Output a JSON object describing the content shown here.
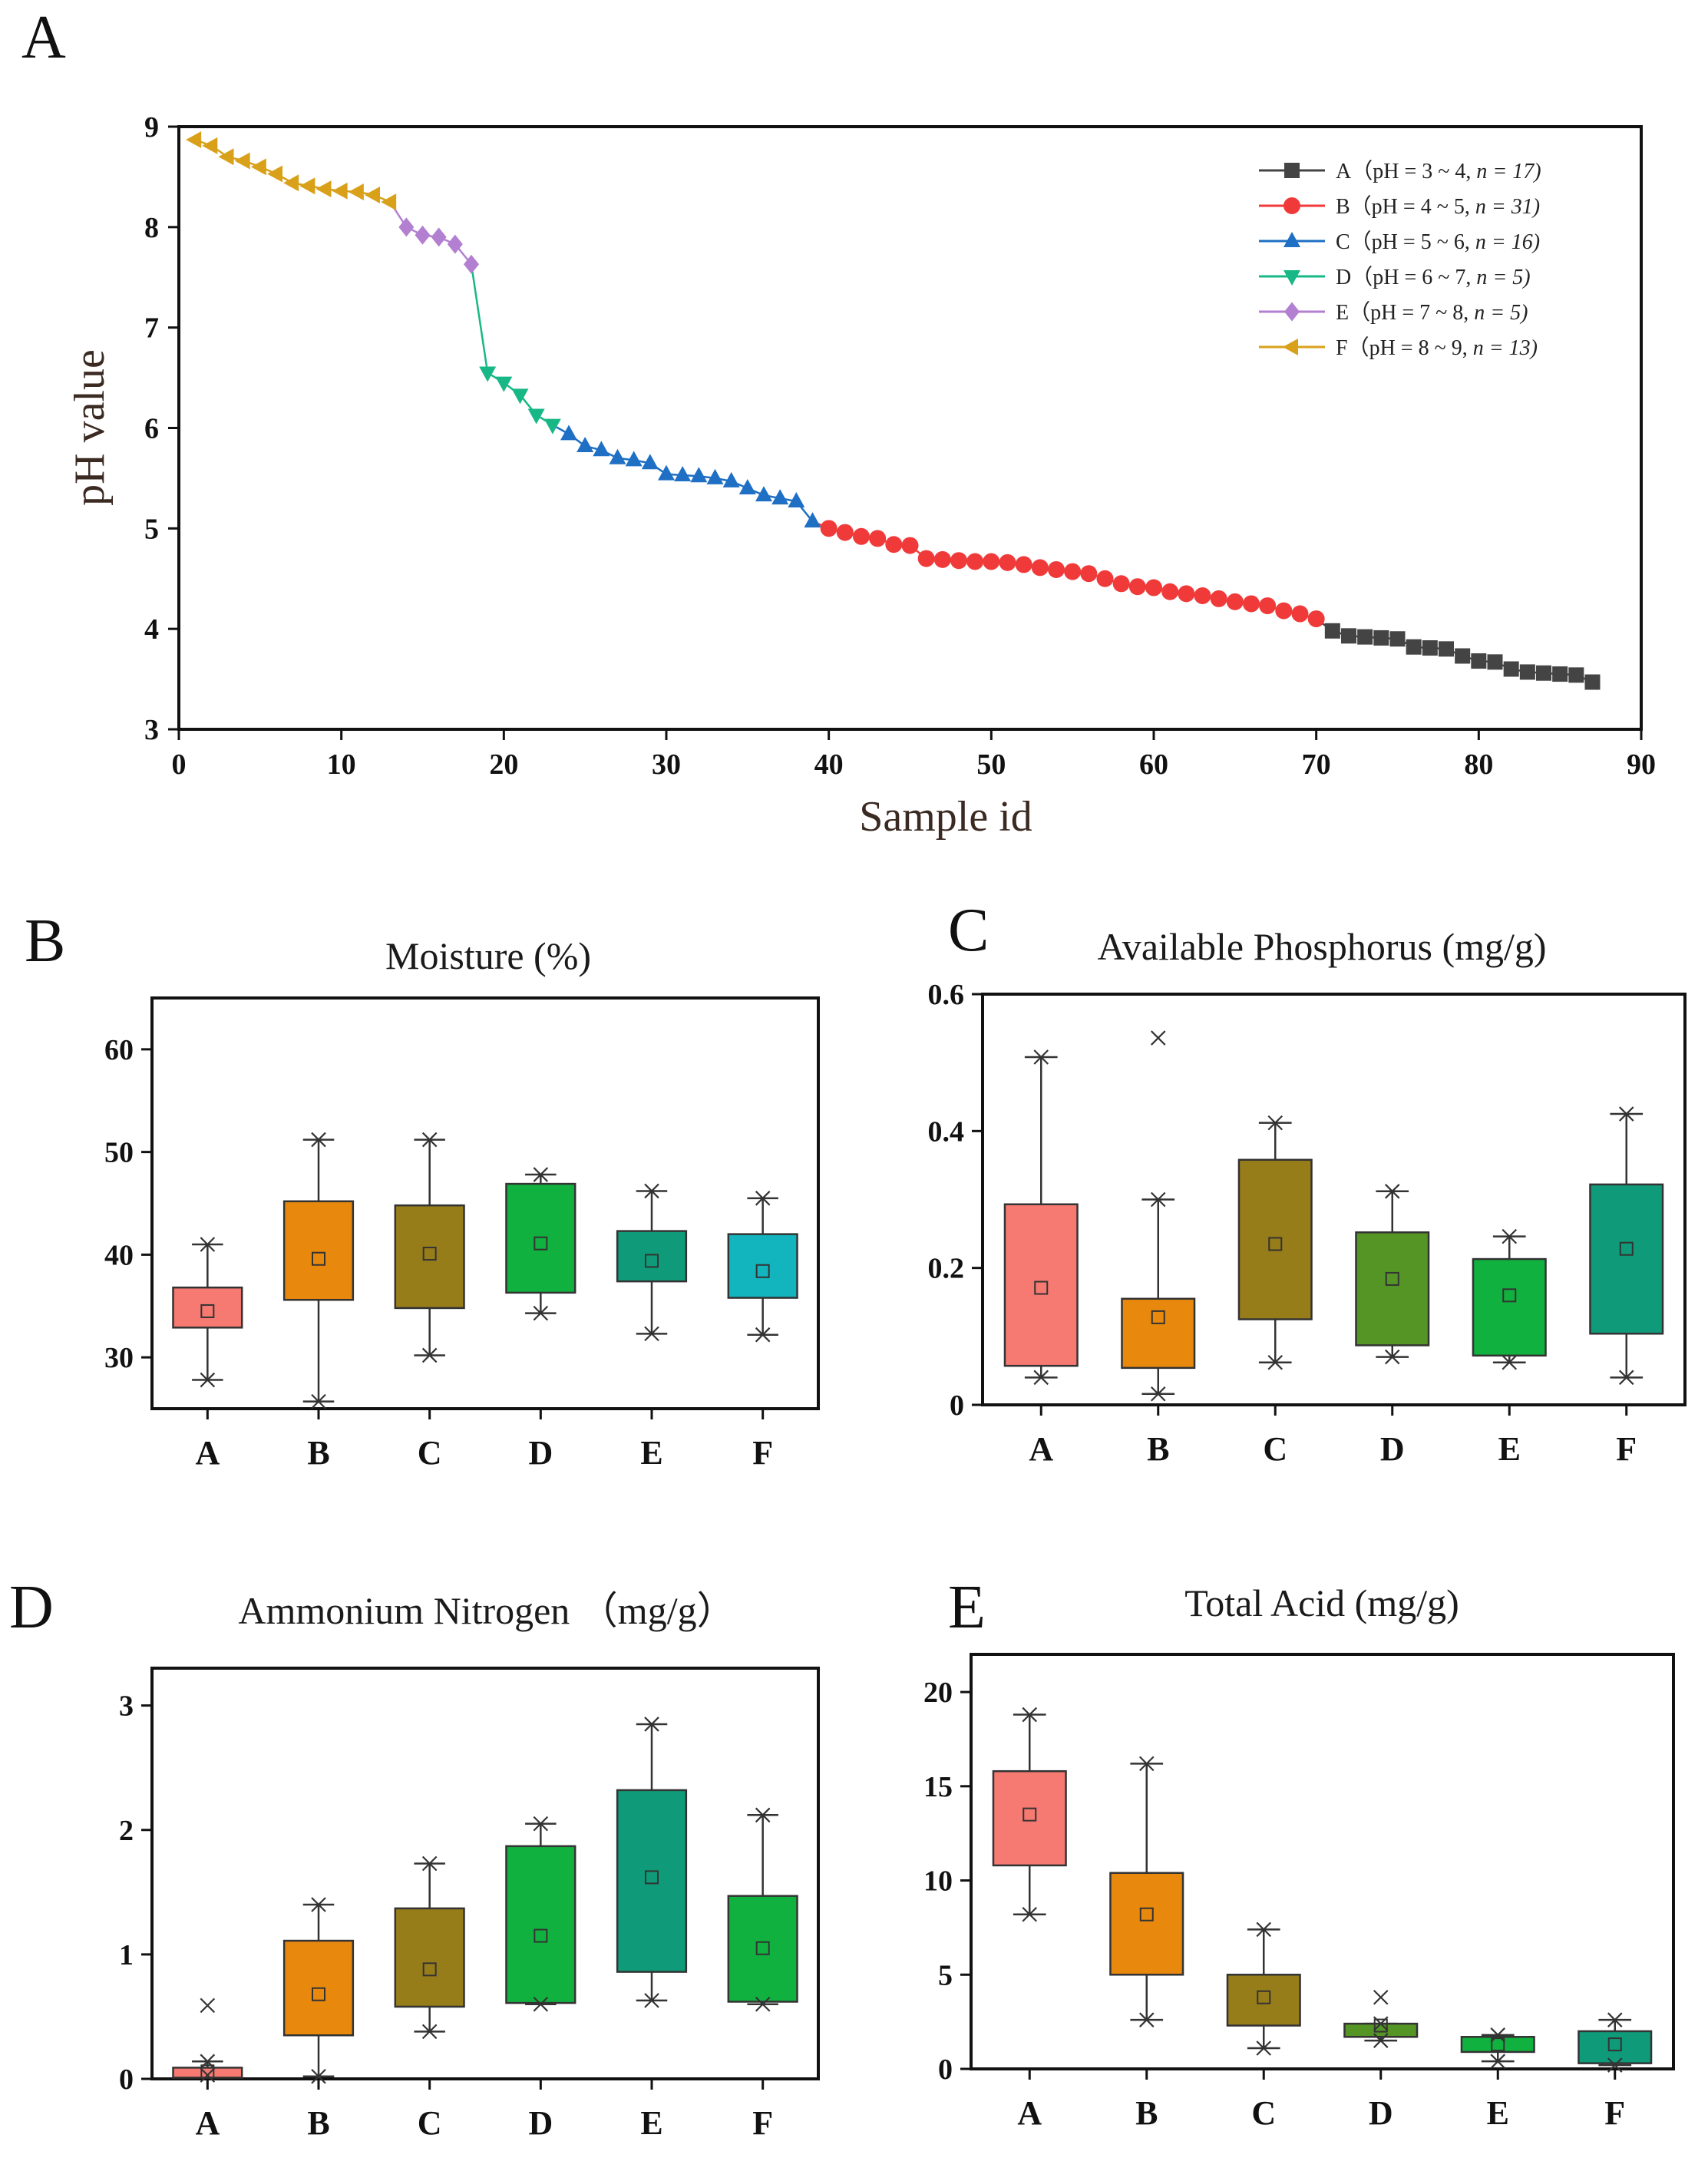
{
  "figure": {
    "panels": [
      "A",
      "B",
      "C",
      "D",
      "E"
    ]
  },
  "chart_data": [
    {
      "panel": "A",
      "type": "line",
      "xlabel": "Sample id",
      "ylabel": "pH value",
      "xlim": [
        0,
        90
      ],
      "ylim": [
        3,
        9
      ],
      "xticks": [
        0,
        10,
        20,
        30,
        40,
        50,
        60,
        70,
        80,
        90
      ],
      "yticks": [
        3,
        4,
        5,
        6,
        7,
        8,
        9
      ],
      "legend": {
        "placement": "top-right"
      },
      "series": [
        {
          "name": "A",
          "legend_label": "A（pH = 3 ~ 4, ",
          "legend_n": "n = 17)",
          "color": "#444444",
          "marker": "square",
          "x": [
            71,
            72,
            73,
            74,
            75,
            76,
            77,
            78,
            79,
            80,
            81,
            82,
            83,
            84,
            85,
            86,
            87
          ],
          "values": [
            3.98,
            3.93,
            3.92,
            3.91,
            3.9,
            3.82,
            3.81,
            3.8,
            3.73,
            3.68,
            3.67,
            3.6,
            3.57,
            3.56,
            3.55,
            3.54,
            3.47
          ]
        },
        {
          "name": "B",
          "legend_label": "B（pH = 4 ~ 5, ",
          "legend_n": "n = 31)",
          "color": "#f03a3a",
          "marker": "circle",
          "x": [
            40,
            41,
            42,
            43,
            44,
            45,
            46,
            47,
            48,
            49,
            50,
            51,
            52,
            53,
            54,
            55,
            56,
            57,
            58,
            59,
            60,
            61,
            62,
            63,
            64,
            65,
            66,
            67,
            68,
            69,
            70
          ],
          "values": [
            5.0,
            4.96,
            4.92,
            4.9,
            4.84,
            4.83,
            4.7,
            4.69,
            4.68,
            4.67,
            4.67,
            4.66,
            4.64,
            4.61,
            4.59,
            4.57,
            4.55,
            4.5,
            4.45,
            4.42,
            4.41,
            4.37,
            4.35,
            4.33,
            4.3,
            4.27,
            4.25,
            4.23,
            4.18,
            4.15,
            4.1
          ]
        },
        {
          "name": "C",
          "legend_label": "C（pH = 5 ~ 6, ",
          "legend_n": "n = 16)",
          "color": "#1f6fc4",
          "marker": "triangle-up",
          "x": [
            24,
            25,
            26,
            27,
            28,
            29,
            30,
            31,
            32,
            33,
            34,
            35,
            36,
            37,
            38,
            39
          ],
          "values": [
            5.94,
            5.82,
            5.78,
            5.7,
            5.68,
            5.65,
            5.54,
            5.53,
            5.52,
            5.5,
            5.47,
            5.4,
            5.33,
            5.3,
            5.27,
            5.07
          ]
        },
        {
          "name": "D",
          "legend_label": "D（pH = 6 ~ 7, ",
          "legend_n": "n = 5)",
          "color": "#17b885",
          "marker": "triangle-down",
          "x": [
            19,
            20,
            21,
            22,
            23
          ],
          "values": [
            6.55,
            6.45,
            6.33,
            6.13,
            6.03
          ]
        },
        {
          "name": "E",
          "legend_label": "E（pH = 7 ~ 8, ",
          "legend_n": "n = 5)",
          "color": "#b37fd1",
          "marker": "diamond",
          "x": [
            14,
            15,
            16,
            17,
            18
          ],
          "values": [
            8.0,
            7.92,
            7.9,
            7.83,
            7.63
          ]
        },
        {
          "name": "F",
          "legend_label": "F（pH = 8 ~ 9, ",
          "legend_n": "n = 13)",
          "color": "#d9a11a",
          "marker": "triangle-left",
          "x": [
            1,
            2,
            3,
            4,
            5,
            6,
            7,
            8,
            9,
            10,
            11,
            12,
            13
          ],
          "values": [
            8.87,
            8.81,
            8.7,
            8.66,
            8.6,
            8.53,
            8.44,
            8.41,
            8.38,
            8.36,
            8.35,
            8.32,
            8.25
          ]
        }
      ]
    },
    {
      "panel": "B",
      "type": "box",
      "title": "Moisture (%)",
      "ylim": [
        25,
        65
      ],
      "yticks": [
        30,
        40,
        50,
        60
      ],
      "categories": [
        "A",
        "B",
        "C",
        "D",
        "E",
        "F"
      ],
      "colors": [
        "#f77a72",
        "#e8890d",
        "#977c1a",
        "#11b13f",
        "#0f9b79",
        "#12b4be"
      ],
      "whisker_low": [
        27.8,
        25.7,
        30.2,
        34.3,
        32.3,
        32.2
      ],
      "q1": [
        32.9,
        35.6,
        34.8,
        36.3,
        37.4,
        35.8
      ],
      "q3": [
        36.8,
        45.2,
        44.8,
        46.9,
        42.3,
        42.0
      ],
      "whisker_high": [
        41.0,
        51.2,
        51.2,
        47.8,
        46.2,
        45.5
      ],
      "mean": [
        34.5,
        39.6,
        40.1,
        41.1,
        39.4,
        38.4
      ],
      "outliers": [
        [],
        [],
        [],
        [],
        [],
        []
      ]
    },
    {
      "panel": "C",
      "type": "box",
      "title": "Available Phosphorus (mg/g)",
      "ylim": [
        0.0,
        0.6
      ],
      "yticks": [
        0.0,
        0.2,
        0.4,
        0.6
      ],
      "categories": [
        "A",
        "B",
        "C",
        "D",
        "E",
        "F"
      ],
      "colors": [
        "#f77a72",
        "#e8890d",
        "#977c1a",
        "#559526",
        "#11b13f",
        "#0f9b79"
      ],
      "whisker_low": [
        0.04,
        0.016,
        0.062,
        0.07,
        0.062,
        0.04
      ],
      "q1": [
        0.057,
        0.054,
        0.125,
        0.087,
        0.072,
        0.104
      ],
      "q3": [
        0.293,
        0.155,
        0.358,
        0.252,
        0.213,
        0.322
      ],
      "whisker_high": [
        0.508,
        0.3,
        0.412,
        0.312,
        0.246,
        0.425
      ],
      "mean": [
        0.171,
        0.128,
        0.235,
        0.184,
        0.16,
        0.228
      ],
      "outliers": [
        [],
        [
          0.536
        ],
        [],
        [],
        [],
        []
      ]
    },
    {
      "panel": "D",
      "type": "box",
      "title": "Ammonium Nitrogen （mg/g）",
      "ylim": [
        0,
        3.3
      ],
      "yticks": [
        0,
        1,
        2,
        3
      ],
      "categories": [
        "A",
        "B",
        "C",
        "D",
        "E",
        "F"
      ],
      "colors": [
        "#f77a72",
        "#e8890d",
        "#977c1a",
        "#11b13f",
        "#0f9b79",
        "#11b13f"
      ],
      "whisker_low": [
        0.03,
        0.02,
        0.38,
        0.6,
        0.63,
        0.6
      ],
      "q1": [
        0.01,
        0.35,
        0.58,
        0.61,
        0.86,
        0.62
      ],
      "q3": [
        0.09,
        1.11,
        1.37,
        1.87,
        2.32,
        1.47
      ],
      "whisker_high": [
        0.14,
        1.4,
        1.73,
        2.05,
        2.85,
        2.12
      ],
      "mean": [
        0.06,
        0.68,
        0.88,
        1.15,
        1.62,
        1.05
      ],
      "outliers": [
        [
          0.59
        ],
        [],
        [],
        [],
        [],
        []
      ]
    },
    {
      "panel": "E",
      "type": "box",
      "title": "Total Acid (mg/g)",
      "ylim": [
        0,
        22
      ],
      "yticks": [
        0,
        5,
        10,
        15,
        20
      ],
      "categories": [
        "A",
        "B",
        "C",
        "D",
        "E",
        "F"
      ],
      "colors": [
        "#f77a72",
        "#e8890d",
        "#977c1a",
        "#559526",
        "#11b13f",
        "#0f9b79"
      ],
      "whisker_low": [
        8.2,
        2.6,
        1.1,
        1.5,
        0.4,
        0.2
      ],
      "q1": [
        10.8,
        5.0,
        2.3,
        1.7,
        0.9,
        0.3
      ],
      "q3": [
        15.8,
        10.4,
        5.0,
        2.4,
        1.7,
        2.0
      ],
      "whisker_high": [
        18.8,
        16.2,
        7.4,
        2.4,
        1.8,
        2.6
      ],
      "mean": [
        13.5,
        8.2,
        3.8,
        2.3,
        1.3,
        1.3
      ],
      "outliers": [
        [],
        [],
        [],
        [
          3.8
        ],
        [],
        []
      ]
    }
  ]
}
